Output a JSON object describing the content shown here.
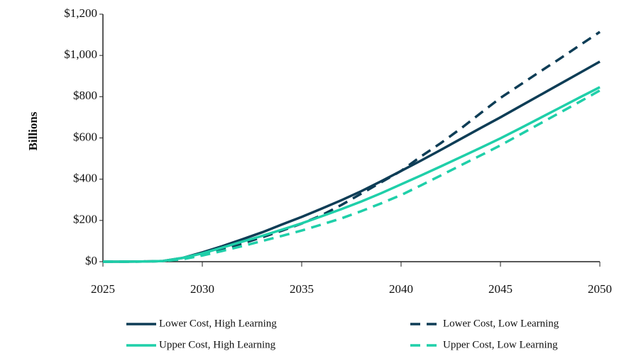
{
  "chart_data": {
    "type": "line",
    "y_label": "Billions",
    "x": [
      2025,
      2026,
      2027,
      2028,
      2029,
      2030,
      2031,
      2032,
      2033,
      2034,
      2035,
      2036,
      2037,
      2038,
      2039,
      2040,
      2041,
      2042,
      2043,
      2044,
      2045,
      2046,
      2047,
      2048,
      2049,
      2050
    ],
    "series": [
      {
        "name": "Lower Cost, High Learning",
        "color": "#0e3d56",
        "dashed": false,
        "values": [
          0,
          0,
          1,
          3,
          18,
          45,
          75,
          108,
          142,
          180,
          217,
          257,
          298,
          342,
          390,
          440,
          490,
          542,
          595,
          648,
          700,
          754,
          808,
          862,
          916,
          970
        ]
      },
      {
        "name": "Lower Cost, Low Learning",
        "color": "#0e3d56",
        "dashed": true,
        "values": [
          0,
          0,
          1,
          3,
          12,
          35,
          60,
          88,
          118,
          150,
          185,
          225,
          275,
          330,
          385,
          440,
          510,
          575,
          645,
          720,
          794,
          858,
          922,
          985,
          1050,
          1114
        ]
      },
      {
        "name": "Upper Cost, High Learning",
        "color": "#1fcfa9",
        "dashed": false,
        "values": [
          0,
          0,
          1,
          3,
          18,
          40,
          68,
          97,
          125,
          155,
          186,
          220,
          255,
          292,
          332,
          375,
          418,
          462,
          507,
          552,
          598,
          647,
          697,
          747,
          797,
          846
        ]
      },
      {
        "name": "Upper Cost, Low Learning",
        "color": "#1fcfa9",
        "dashed": true,
        "values": [
          0,
          0,
          1,
          3,
          12,
          30,
          52,
          75,
          100,
          125,
          151,
          180,
          210,
          245,
          283,
          323,
          370,
          418,
          467,
          515,
          564,
          617,
          670,
          723,
          776,
          830
        ]
      }
    ],
    "xlim": [
      2025,
      2050
    ],
    "xticks": [
      2025,
      2030,
      2035,
      2040,
      2045,
      2050
    ],
    "ylim": [
      0,
      1200
    ],
    "yticks": [
      {
        "value": 0,
        "label": "$0"
      },
      {
        "value": 200,
        "label": "$200"
      },
      {
        "value": 400,
        "label": "$400"
      },
      {
        "value": 600,
        "label": "$600"
      },
      {
        "value": 800,
        "label": "$800"
      },
      {
        "value": 1000,
        "label": "$1,000"
      },
      {
        "value": 1200,
        "label": "$1,200"
      }
    ],
    "grid": false,
    "legend": "bottom"
  }
}
